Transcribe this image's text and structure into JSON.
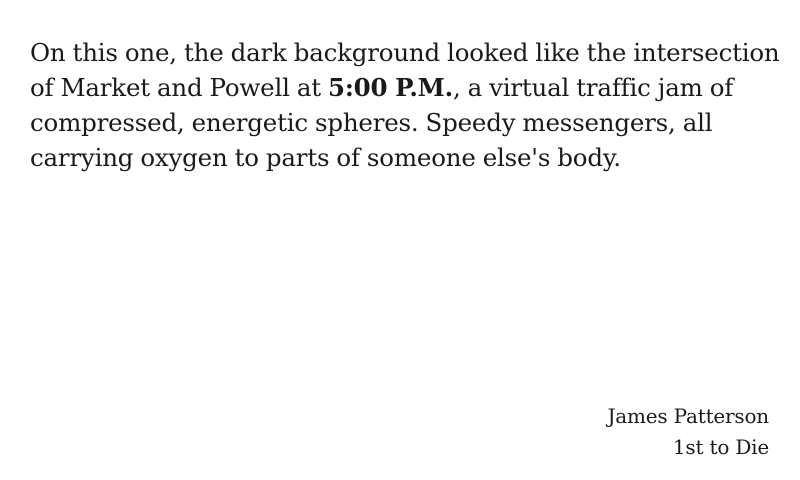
{
  "quote": {
    "part1": "On this one, the dark background looked like the intersection of Market and Powell at ",
    "time": "5:00 P.M.",
    "part2": ", a virtual traffic jam of compressed, energetic spheres. Speedy messengers, all carrying oxygen to parts of someone else's body."
  },
  "attribution": {
    "author": "James Patterson",
    "source": "1st to Die"
  }
}
